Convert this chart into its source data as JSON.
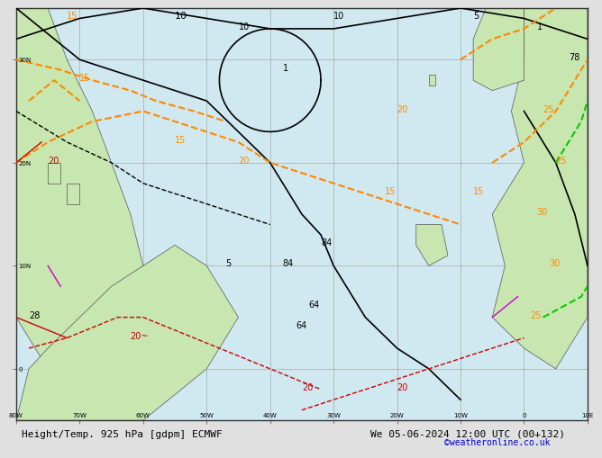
{
  "title_left": "Height/Temp. 925 hPa [gdpm] ECMWF",
  "title_right": "We 05-06-2024 12:00 UTC (00+132)",
  "credit": "©weatheronline.co.uk",
  "credit_color": "#0000cc",
  "bg_color": "#d0e8f0",
  "land_color": "#c8e6b0",
  "lat_min": -5,
  "lat_max": 35,
  "lon_min": -80,
  "lon_max": 10,
  "grid_color": "#aaaaaa",
  "contour_black_color": "#000000",
  "contour_orange_color": "#ff8800",
  "contour_red_color": "#cc0000",
  "contour_green_color": "#00cc00",
  "contour_magenta_color": "#cc00cc",
  "bottom_bar_color": "#e8e8e8",
  "label_fontsize": 7,
  "title_fontsize": 8,
  "credit_fontsize": 7,
  "lon_ticks": [
    -80,
    -70,
    -60,
    -50,
    -40,
    -30,
    -20,
    -10,
    0,
    10
  ],
  "lon_labels": [
    "80W",
    "70W",
    "60W",
    "50W",
    "40W",
    "30W",
    "20W",
    "10W",
    "0",
    "10E"
  ],
  "lat_ticks": [
    0,
    10,
    20,
    30
  ],
  "lat_labels": [
    "0",
    "10N",
    "20N",
    "30N"
  ]
}
